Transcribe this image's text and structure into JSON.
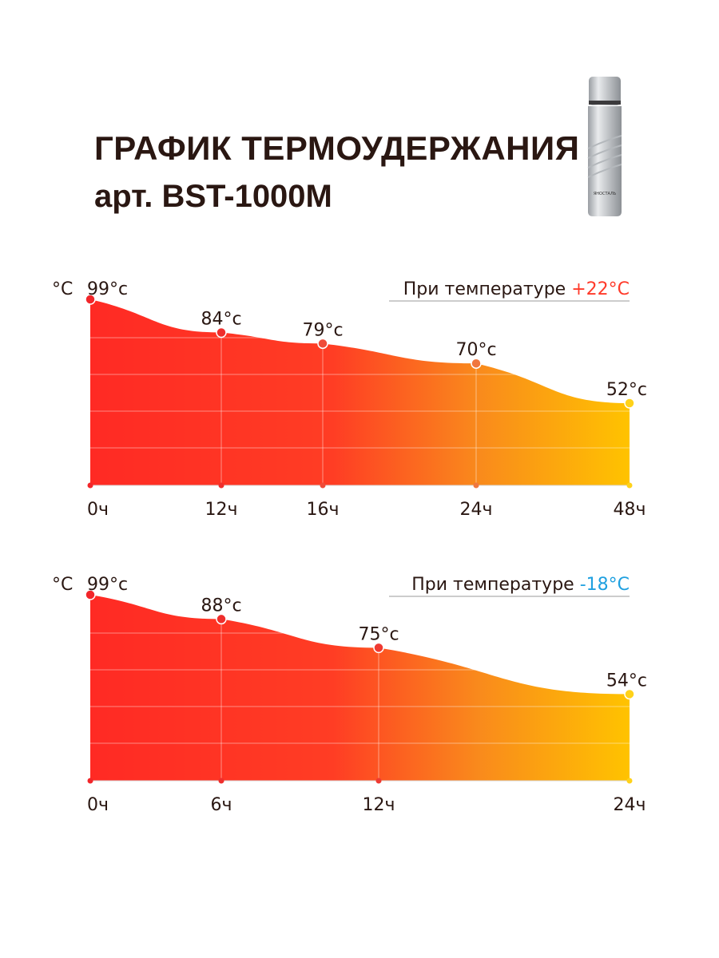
{
  "header": {
    "title": "ГРАФИК ТЕРМОУДЕРЖАНИЯ",
    "subtitle": "арт. BST-1000M"
  },
  "product_image": {
    "icon": "thermos-bottle",
    "brand_label": "ЯНОСТАЛЬ"
  },
  "colors": {
    "red": "#ff2a24",
    "orange": "#f98a1c",
    "yellow": "#ffc300",
    "warm_accent": "#ff3a2a",
    "cold_accent": "#1fa0e0",
    "text": "#2a1712"
  },
  "chart_data": [
    {
      "type": "area",
      "y_unit_label": "°C",
      "note_prefix": "При температуре ",
      "note_value": "+22°C",
      "note_color": "#ff3a2a",
      "categories": [
        "0ч",
        "12ч",
        "16ч",
        "24ч",
        "48ч"
      ],
      "point_labels": [
        "99°c",
        "84°c",
        "79°c",
        "70°c",
        "52°c"
      ],
      "values": [
        99,
        84,
        79,
        70,
        52
      ],
      "point_colors": [
        "#f2262a",
        "#ef2e2c",
        "#ef4b38",
        "#f0773e",
        "#ffd21a"
      ],
      "grid": true
    },
    {
      "type": "area",
      "y_unit_label": "°C",
      "note_prefix": "При температуре ",
      "note_value": "-18°C",
      "note_color": "#1fa0e0",
      "categories": [
        "0ч",
        "6ч",
        "12ч",
        "24ч"
      ],
      "point_labels": [
        "99°c",
        "88°c",
        "75°c",
        "54°c"
      ],
      "values": [
        99,
        88,
        75,
        54
      ],
      "point_colors": [
        "#f2262a",
        "#ef2e2c",
        "#ef3a32",
        "#ffd21a"
      ],
      "grid": true
    }
  ]
}
